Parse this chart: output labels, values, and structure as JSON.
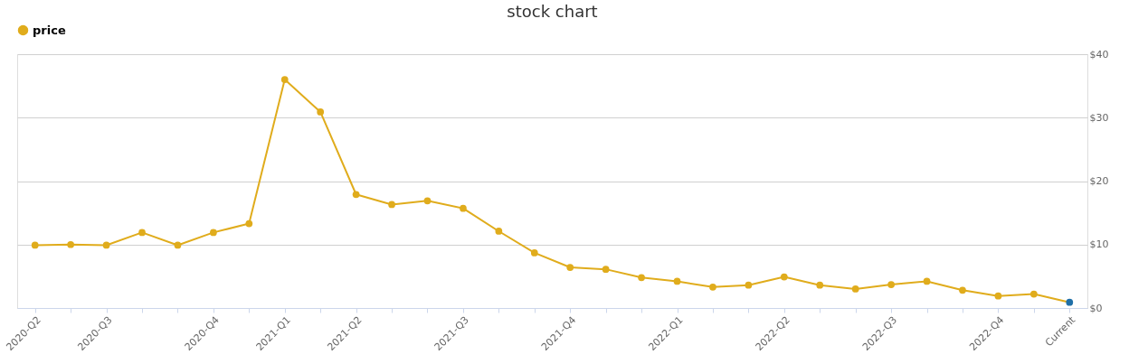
{
  "chart_data": {
    "type": "line",
    "title": "stock chart",
    "categories": [
      "2020-Q2",
      null,
      "2020-Q3",
      null,
      null,
      "2020-Q4",
      null,
      "2021-Q1",
      null,
      "2021-Q2",
      null,
      null,
      "2021-Q3",
      null,
      null,
      "2021-Q4",
      null,
      null,
      "2022-Q1",
      null,
      null,
      "2022-Q2",
      null,
      null,
      "2022-Q3",
      null,
      null,
      "2022-Q4",
      null,
      "Current"
    ],
    "series": [
      {
        "name": "price",
        "color": "#e0ac1c",
        "colors": [
          "#e0ac1c",
          "#e0ac1c",
          "#e0ac1c",
          "#e0ac1c",
          "#e0ac1c",
          "#e0ac1c",
          "#e0ac1c",
          "#e0ac1c",
          "#e0ac1c",
          "#e0ac1c",
          "#e0ac1c",
          "#e0ac1c",
          "#e0ac1c",
          "#e0ac1c",
          "#e0ac1c",
          "#e0ac1c",
          "#e0ac1c",
          "#e0ac1c",
          "#e0ac1c",
          "#e0ac1c",
          "#e0ac1c",
          "#e0ac1c",
          "#e0ac1c",
          "#e0ac1c",
          "#e0ac1c",
          "#e0ac1c",
          "#e0ac1c",
          "#e0ac1c",
          "#e0ac1c",
          "#1f6fa8"
        ],
        "values": [
          9.9,
          10.0,
          9.9,
          11.9,
          9.9,
          11.9,
          13.3,
          36.0,
          30.9,
          17.9,
          16.3,
          16.9,
          15.7,
          12.1,
          8.7,
          6.4,
          6.1,
          4.8,
          4.2,
          3.3,
          3.6,
          4.9,
          3.6,
          3.0,
          3.7,
          4.2,
          2.8,
          1.9,
          2.2,
          0.9
        ]
      }
    ],
    "ylim": [
      0,
      40
    ],
    "yticks": [
      {
        "value": 0,
        "label": "$0"
      },
      {
        "value": 10,
        "label": "$10"
      },
      {
        "value": 20,
        "label": "$20"
      },
      {
        "value": 30,
        "label": "$30"
      },
      {
        "value": 40,
        "label": "$40"
      }
    ],
    "grid": "y",
    "legend": "top",
    "marker": "circle",
    "line_style": "solid"
  }
}
